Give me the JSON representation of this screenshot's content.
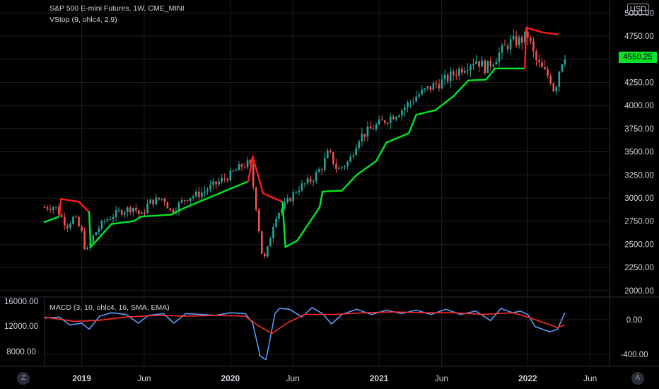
{
  "header": {
    "symbol_title": "S&P 500 E-mini Futures, 1W, CME_MINI",
    "indicator": "VStop (9, ohlc4, 2.9)",
    "currency": "USD",
    "last_price": "4550.25"
  },
  "macd_panel": {
    "title": "MACD (3, 10, ohlc4, 16, SMA, EMA)",
    "left_ticks": [
      "16000.00",
      "12000.00",
      "8000.00"
    ],
    "right_ticks": [
      "0.00",
      "-400.00"
    ]
  },
  "buttons": {
    "zoom": "Z",
    "auto": "A"
  },
  "colors": {
    "up": "#26a69a",
    "down": "#ef5350",
    "vstop_up": "#00e626",
    "vstop_down": "#ff1a1a",
    "macd": "#5b9cf6",
    "signal": "#ff2a2a",
    "grid": "#1c1f26",
    "background": "#000000"
  },
  "chart_data": [
    {
      "type": "candlestick",
      "title": "S&P 500 E-mini Futures, 1W, CME_MINI",
      "x_ticks": [
        "2019",
        "Jun",
        "2020",
        "Jun",
        "2021",
        "Jun",
        "2022",
        "Jun"
      ],
      "y_ticks": [
        5000,
        4750,
        4500,
        4250,
        4000,
        3750,
        3500,
        3250,
        3000,
        2750,
        2500,
        2250,
        2000
      ],
      "ylim": [
        1900,
        5100
      ],
      "x_range": [
        "2018-10",
        "2022-06"
      ],
      "last_close": 4550.25,
      "close_path": [
        [
          2018.75,
          2900
        ],
        [
          2018.82,
          2910
        ],
        [
          2018.9,
          2700
        ],
        [
          2018.95,
          2800
        ],
        [
          2019.0,
          2620
        ],
        [
          2019.03,
          2400
        ],
        [
          2019.08,
          2600
        ],
        [
          2019.15,
          2750
        ],
        [
          2019.25,
          2850
        ],
        [
          2019.35,
          2900
        ],
        [
          2019.4,
          2800
        ],
        [
          2019.45,
          2950
        ],
        [
          2019.55,
          3000
        ],
        [
          2019.6,
          2850
        ],
        [
          2019.7,
          3000
        ],
        [
          2019.8,
          3050
        ],
        [
          2019.9,
          3150
        ],
        [
          2020.0,
          3250
        ],
        [
          2020.08,
          3350
        ],
        [
          2020.13,
          3380
        ],
        [
          2020.17,
          2950
        ],
        [
          2020.22,
          2300
        ],
        [
          2020.25,
          2450
        ],
        [
          2020.3,
          2800
        ],
        [
          2020.38,
          2950
        ],
        [
          2020.45,
          3100
        ],
        [
          2020.55,
          3200
        ],
        [
          2020.62,
          3350
        ],
        [
          2020.66,
          3500
        ],
        [
          2020.72,
          3300
        ],
        [
          2020.8,
          3400
        ],
        [
          2020.86,
          3650
        ],
        [
          2020.95,
          3750
        ],
        [
          2021.05,
          3850
        ],
        [
          2021.15,
          3950
        ],
        [
          2021.25,
          4100
        ],
        [
          2021.35,
          4200
        ],
        [
          2021.45,
          4280
        ],
        [
          2021.55,
          4400
        ],
        [
          2021.65,
          4500
        ],
        [
          2021.72,
          4400
        ],
        [
          2021.8,
          4550
        ],
        [
          2021.88,
          4680
        ],
        [
          2021.95,
          4700
        ],
        [
          2022.0,
          4760
        ],
        [
          2022.05,
          4500
        ],
        [
          2022.1,
          4380
        ],
        [
          2022.15,
          4300
        ],
        [
          2022.18,
          4150
        ],
        [
          2022.22,
          4450
        ],
        [
          2022.25,
          4550
        ]
      ],
      "vstop_path": [
        [
          2018.75,
          2740,
          "up"
        ],
        [
          2018.85,
          2800,
          "up"
        ],
        [
          2018.86,
          2990,
          "down"
        ],
        [
          2018.98,
          2960,
          "down"
        ],
        [
          2019.05,
          2850,
          "down"
        ],
        [
          2019.06,
          2470,
          "up"
        ],
        [
          2019.2,
          2720,
          "up"
        ],
        [
          2019.35,
          2750,
          "up"
        ],
        [
          2019.4,
          2800,
          "up"
        ],
        [
          2019.6,
          2820,
          "up"
        ],
        [
          2019.7,
          2900,
          "up"
        ],
        [
          2019.85,
          3000,
          "up"
        ],
        [
          2020.0,
          3100,
          "up"
        ],
        [
          2020.12,
          3180,
          "up"
        ],
        [
          2020.15,
          3450,
          "down"
        ],
        [
          2020.22,
          3050,
          "down"
        ],
        [
          2020.35,
          2960,
          "down"
        ],
        [
          2020.37,
          2470,
          "up"
        ],
        [
          2020.45,
          2540,
          "up"
        ],
        [
          2020.6,
          2900,
          "up"
        ],
        [
          2020.62,
          3070,
          "up"
        ],
        [
          2020.75,
          3080,
          "up"
        ],
        [
          2020.85,
          3250,
          "up"
        ],
        [
          2020.98,
          3400,
          "up"
        ],
        [
          2021.05,
          3600,
          "up"
        ],
        [
          2021.2,
          3700,
          "up"
        ],
        [
          2021.25,
          3900,
          "up"
        ],
        [
          2021.38,
          3950,
          "up"
        ],
        [
          2021.5,
          4100,
          "up"
        ],
        [
          2021.6,
          4270,
          "up"
        ],
        [
          2021.72,
          4280,
          "up"
        ],
        [
          2021.78,
          4400,
          "up"
        ],
        [
          2021.98,
          4400,
          "up"
        ],
        [
          2021.99,
          4840,
          "down"
        ],
        [
          2022.1,
          4790,
          "down"
        ],
        [
          2022.2,
          4770,
          "down"
        ]
      ]
    },
    {
      "type": "line",
      "title": "MACD (3, 10, ohlc4, 16, SMA, EMA)",
      "y_ticks": [
        0,
        -400
      ],
      "left_ticks": [
        16000,
        12000,
        8000
      ],
      "series": [
        {
          "name": "MACD",
          "points": [
            [
              2018.75,
              20
            ],
            [
              2018.85,
              30
            ],
            [
              2018.92,
              -60
            ],
            [
              2019.0,
              -40
            ],
            [
              2019.05,
              -110
            ],
            [
              2019.12,
              40
            ],
            [
              2019.2,
              80
            ],
            [
              2019.3,
              60
            ],
            [
              2019.38,
              -40
            ],
            [
              2019.45,
              50
            ],
            [
              2019.55,
              70
            ],
            [
              2019.62,
              -40
            ],
            [
              2019.7,
              70
            ],
            [
              2019.8,
              60
            ],
            [
              2019.9,
              50
            ],
            [
              2020.0,
              80
            ],
            [
              2020.1,
              70
            ],
            [
              2020.15,
              -40
            ],
            [
              2020.2,
              -420
            ],
            [
              2020.24,
              -460
            ],
            [
              2020.3,
              70
            ],
            [
              2020.33,
              130
            ],
            [
              2020.4,
              120
            ],
            [
              2020.48,
              30
            ],
            [
              2020.55,
              140
            ],
            [
              2020.62,
              70
            ],
            [
              2020.68,
              -50
            ],
            [
              2020.75,
              60
            ],
            [
              2020.85,
              120
            ],
            [
              2020.95,
              60
            ],
            [
              2021.05,
              110
            ],
            [
              2021.15,
              70
            ],
            [
              2021.25,
              110
            ],
            [
              2021.35,
              60
            ],
            [
              2021.45,
              120
            ],
            [
              2021.55,
              60
            ],
            [
              2021.65,
              100
            ],
            [
              2021.75,
              -10
            ],
            [
              2021.82,
              130
            ],
            [
              2021.9,
              80
            ],
            [
              2021.95,
              100
            ],
            [
              2022.0,
              60
            ],
            [
              2022.05,
              -80
            ],
            [
              2022.1,
              -110
            ],
            [
              2022.15,
              -140
            ],
            [
              2022.2,
              -110
            ],
            [
              2022.25,
              80
            ]
          ]
        },
        {
          "name": "Signal",
          "points": [
            [
              2018.75,
              30
            ],
            [
              2018.95,
              -20
            ],
            [
              2019.1,
              -10
            ],
            [
              2019.3,
              30
            ],
            [
              2019.5,
              50
            ],
            [
              2019.7,
              40
            ],
            [
              2019.9,
              50
            ],
            [
              2020.1,
              40
            ],
            [
              2020.18,
              -60
            ],
            [
              2020.28,
              -160
            ],
            [
              2020.38,
              -40
            ],
            [
              2020.5,
              60
            ],
            [
              2020.7,
              60
            ],
            [
              2020.9,
              80
            ],
            [
              2021.1,
              90
            ],
            [
              2021.3,
              80
            ],
            [
              2021.5,
              80
            ],
            [
              2021.7,
              60
            ],
            [
              2021.9,
              80
            ],
            [
              2022.0,
              30
            ],
            [
              2022.1,
              -30
            ],
            [
              2022.2,
              -90
            ],
            [
              2022.25,
              -60
            ]
          ]
        }
      ]
    }
  ]
}
